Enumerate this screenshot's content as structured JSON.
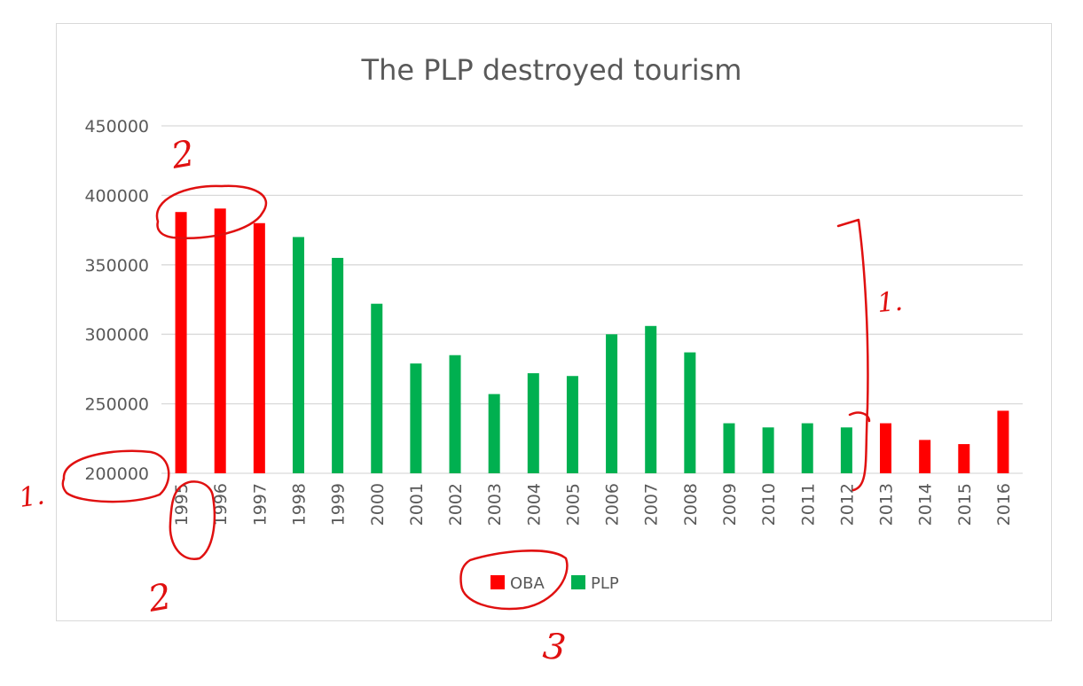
{
  "chart_data": {
    "type": "bar",
    "title": "The PLP destroyed tourism",
    "xlabel": "",
    "ylabel": "",
    "ylim": [
      200000,
      450000
    ],
    "yticks": [
      200000,
      250000,
      300000,
      350000,
      400000,
      450000
    ],
    "yticks_labels": [
      "200000",
      "250000",
      "300000",
      "350000",
      "400000",
      "450000"
    ],
    "grid": true,
    "legend_position": "bottom",
    "categories": [
      "1995",
      "1996",
      "1997",
      "1998",
      "1999",
      "2000",
      "2001",
      "2002",
      "2003",
      "2004",
      "2005",
      "2006",
      "2007",
      "2008",
      "2009",
      "2010",
      "2011",
      "2012",
      "2013",
      "2014",
      "2015",
      "2016"
    ],
    "series": [
      {
        "name": "OBA",
        "color": "#ff0000",
        "values": [
          388000,
          390500,
          380000,
          null,
          null,
          null,
          null,
          null,
          null,
          null,
          null,
          null,
          null,
          null,
          null,
          null,
          null,
          null,
          236000,
          224000,
          221000,
          245000
        ]
      },
      {
        "name": "PLP",
        "color": "#00b050",
        "values": [
          null,
          null,
          null,
          370000,
          355000,
          322000,
          279000,
          285000,
          257000,
          272000,
          270000,
          300000,
          306000,
          287000,
          236000,
          233000,
          236000,
          233000,
          null,
          null,
          null,
          null
        ]
      }
    ]
  },
  "annotations": {
    "color": "#e01010",
    "marks": [
      "1.",
      "1.",
      "2",
      "2",
      "3"
    ]
  }
}
